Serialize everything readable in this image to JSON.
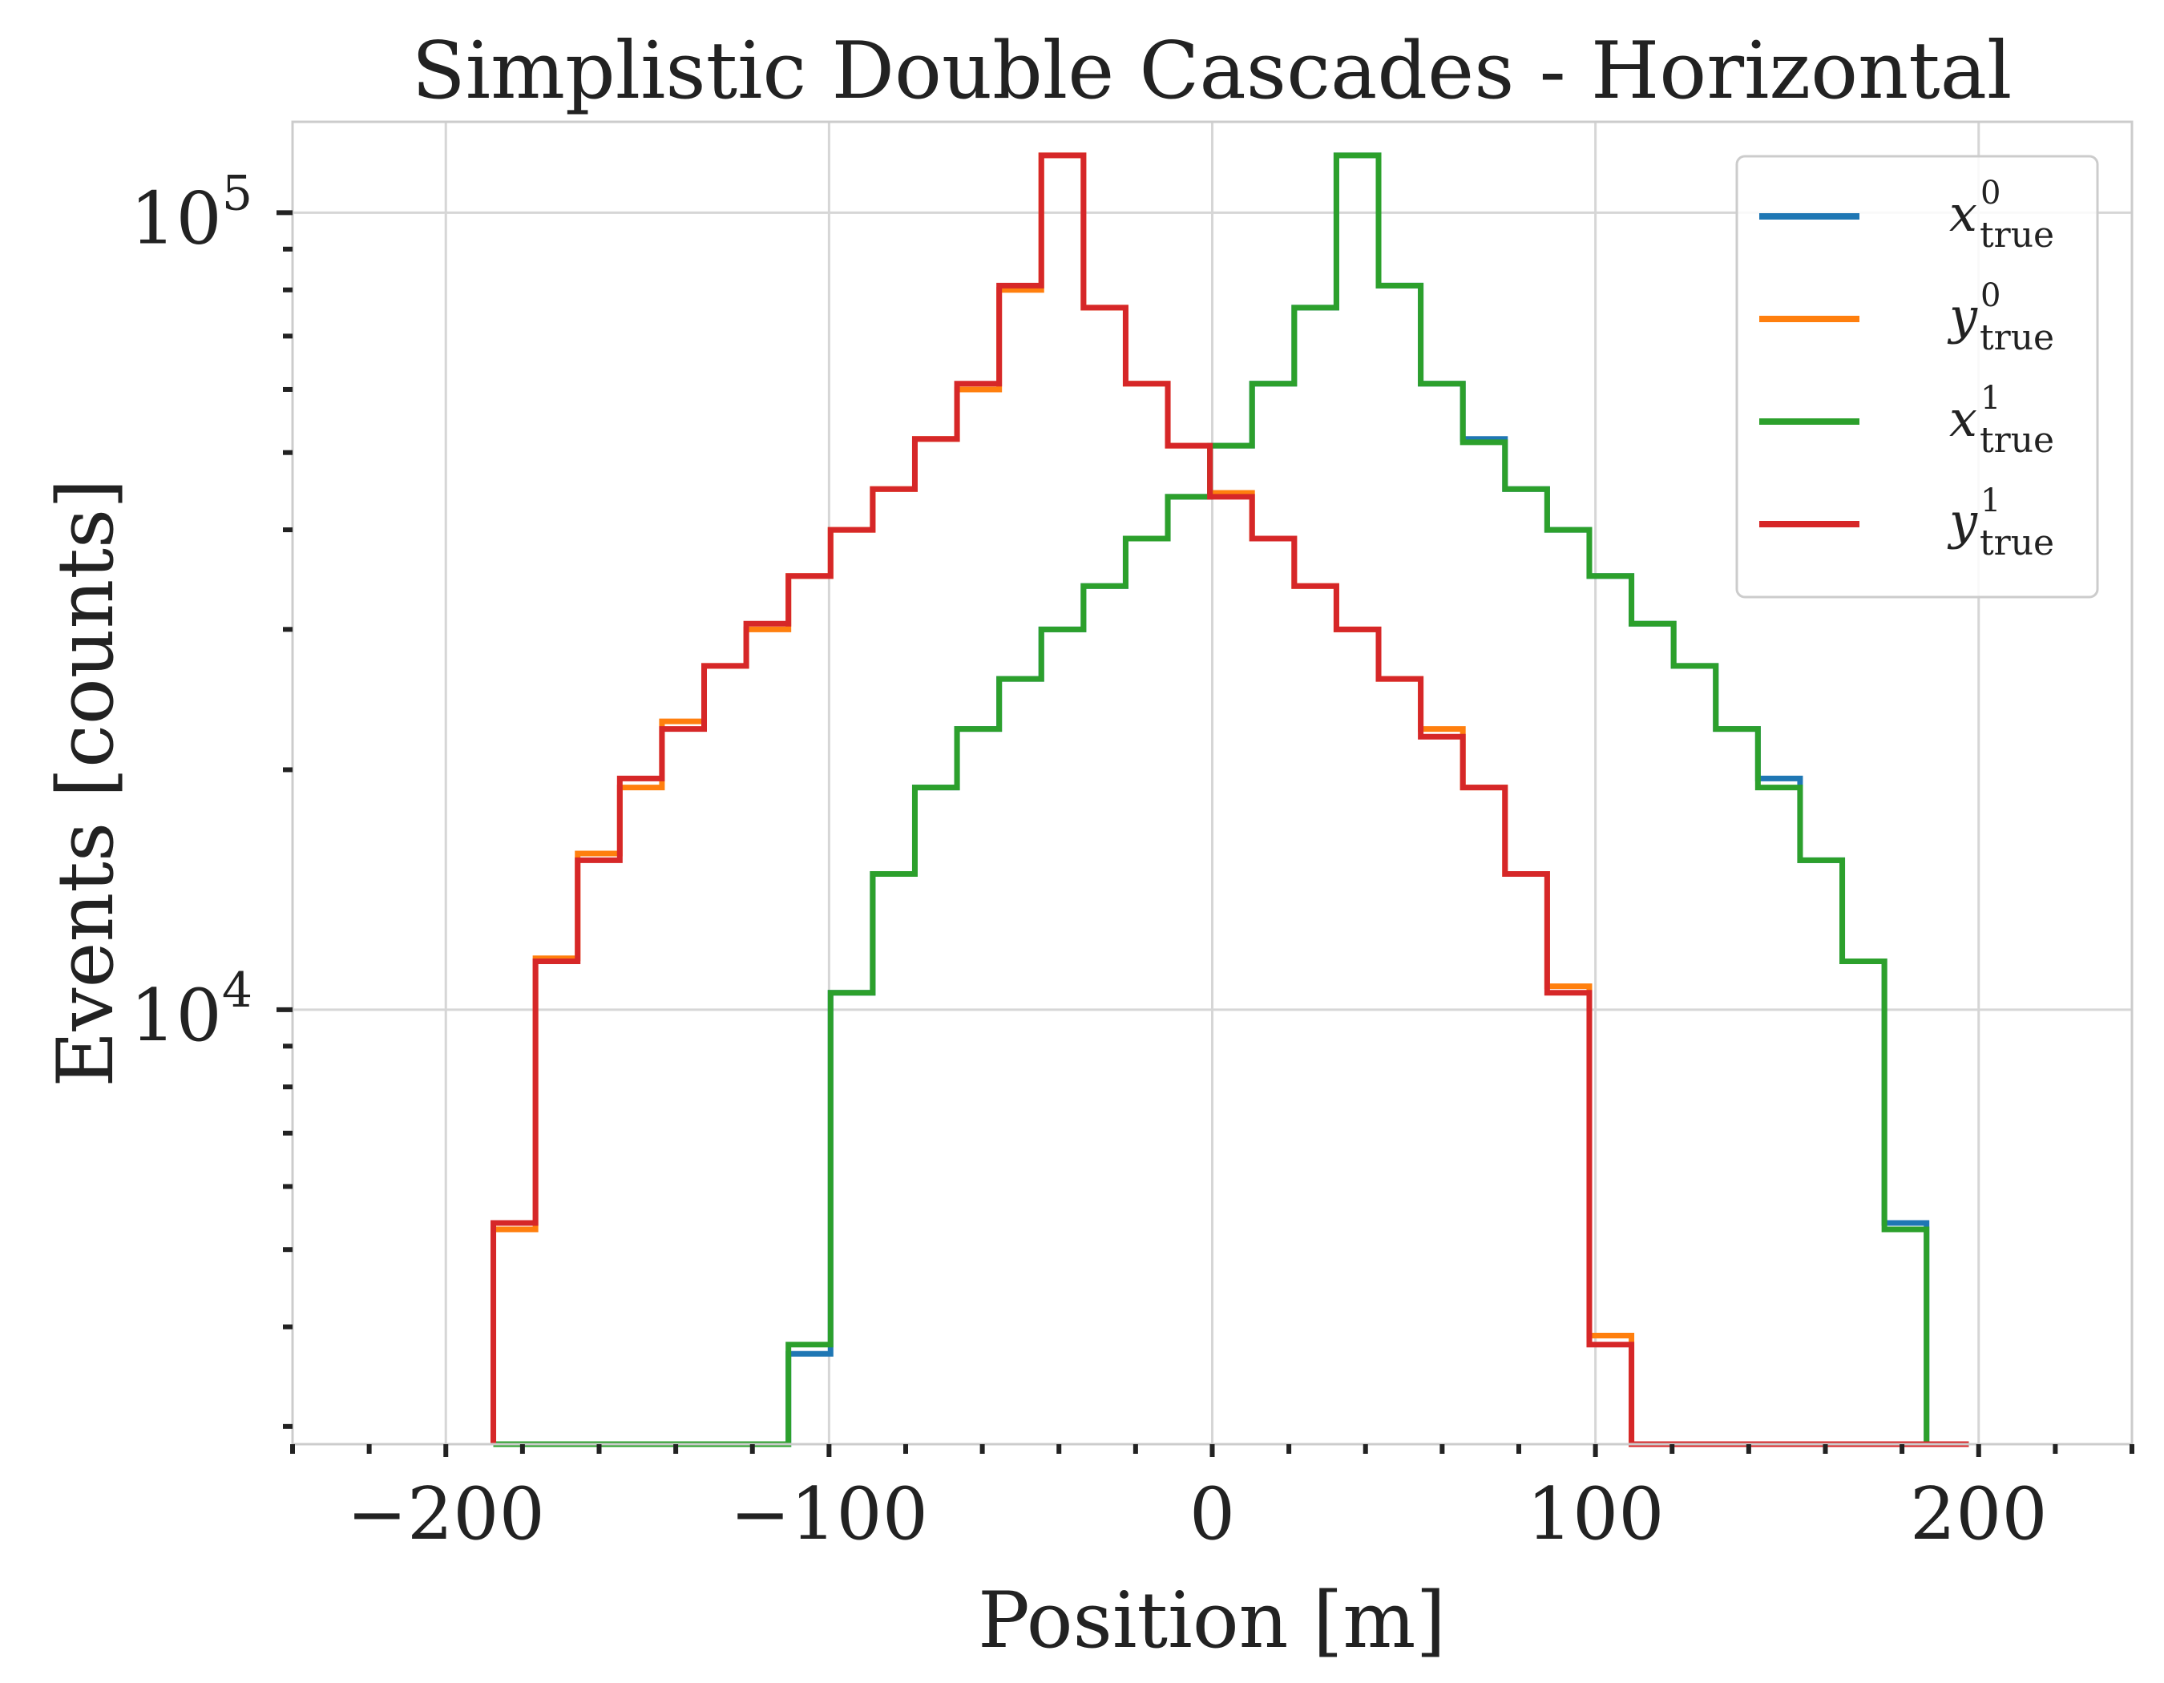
{
  "chart_data": {
    "type": "line",
    "drawstyle": "steps",
    "title": "Simplistic Double Cascades - Horizontal",
    "xlabel": "Position [m]",
    "ylabel": "Events [counts]",
    "xlim": [
      -240,
      240
    ],
    "ylim": [
      2850,
      130000
    ],
    "yscale": "log",
    "grid": true,
    "legend_position": "top-right",
    "x_ticks": [
      -200,
      -100,
      0,
      100,
      200
    ],
    "x_tick_labels": [
      "−200",
      "−100",
      "0",
      "100",
      "200"
    ],
    "y_ticks": [
      10000,
      100000
    ],
    "y_tick_labels": [
      {
        "base": "10",
        "exp": "4"
      },
      {
        "base": "10",
        "exp": "5"
      }
    ],
    "bin_edges": [
      -187.6,
      -176.6,
      -165.6,
      -154.6,
      -143.6,
      -132.6,
      -121.6,
      -110.6,
      -99.6,
      -88.6,
      -77.6,
      -66.6,
      -55.6,
      -44.6,
      -33.6,
      -22.6,
      -11.6,
      -0.6,
      10.4,
      21.4,
      32.4,
      43.4,
      54.4,
      65.4,
      76.4,
      87.4,
      98.4,
      109.4,
      120.4,
      131.4,
      142.4,
      153.4,
      164.4,
      175.4,
      186.4,
      197.4
    ],
    "series": [
      {
        "name": "x",
        "sup": "0",
        "sub": "true",
        "color": "#1f77b4",
        "values": [
          2850,
          2850,
          2850,
          2850,
          2850,
          2850,
          2850,
          3700,
          10500,
          14800,
          19000,
          22500,
          26000,
          30000,
          34000,
          39000,
          44000,
          51000,
          61000,
          76000,
          118000,
          81000,
          61000,
          52000,
          45000,
          40000,
          35000,
          30500,
          27000,
          22500,
          19500,
          15400,
          11500,
          5400,
          2850
        ]
      },
      {
        "name": "y",
        "sup": "0",
        "sub": "true",
        "color": "#ff7f0e",
        "values": [
          5300,
          11600,
          15700,
          19000,
          23000,
          27000,
          30000,
          35000,
          40000,
          45000,
          52000,
          60000,
          80000,
          118000,
          76000,
          61000,
          51000,
          44500,
          39000,
          34000,
          30000,
          26000,
          22500,
          19000,
          14800,
          10700,
          3900,
          2850,
          2850,
          2850,
          2850,
          2850,
          2850,
          2850,
          2850
        ]
      },
      {
        "name": "x",
        "sup": "1",
        "sub": "true",
        "color": "#2ca02c",
        "values": [
          2850,
          2850,
          2850,
          2850,
          2850,
          2850,
          2850,
          3800,
          10500,
          14800,
          19000,
          22500,
          26000,
          30000,
          34000,
          39000,
          44000,
          51000,
          61000,
          76000,
          118000,
          81000,
          61000,
          51500,
          45000,
          40000,
          35000,
          30500,
          27000,
          22500,
          19000,
          15400,
          11500,
          5300,
          2850
        ]
      },
      {
        "name": "y",
        "sup": "1",
        "sub": "true",
        "color": "#d62728",
        "values": [
          5400,
          11500,
          15400,
          19500,
          22500,
          27000,
          30500,
          35000,
          40000,
          45000,
          52000,
          61000,
          81000,
          118000,
          76000,
          61000,
          51000,
          44000,
          39000,
          34000,
          30000,
          26000,
          22000,
          19000,
          14800,
          10500,
          3800,
          2850,
          2850,
          2850,
          2850,
          2850,
          2850,
          2850,
          2850
        ]
      }
    ]
  }
}
